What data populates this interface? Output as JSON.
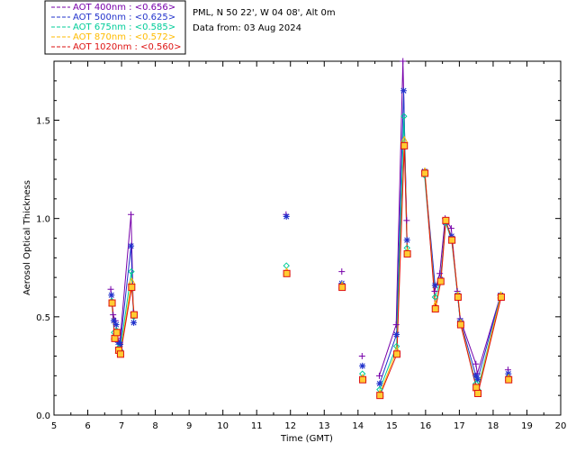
{
  "chart_data": {
    "type": "scatter",
    "title": "",
    "xlabel": "Time (GMT)",
    "ylabel": "Aerosol Optical Thickness",
    "xlim": [
      5,
      20
    ],
    "ylim": [
      0,
      1.8
    ],
    "xticks": [
      5,
      6,
      7,
      8,
      9,
      10,
      11,
      12,
      13,
      14,
      15,
      16,
      17,
      18,
      19,
      20
    ],
    "yticks": [
      0.0,
      0.5,
      1.0,
      1.5
    ],
    "ytick_labels": [
      "0.0",
      "0.5",
      "1.0",
      "1.5"
    ],
    "grid": false,
    "legend_position": "top-left-outside",
    "info": {
      "station": "PML, N 50 22', W 04 08', Alt 0m",
      "date_line": "Data from: 03 Aug 2024"
    },
    "series": [
      {
        "name": "AOT  400nm",
        "label": "AOT  400nm : <0.656>",
        "color": "#7700aa",
        "marker": "plus",
        "points": [
          [
            6.68,
            0.64
          ],
          [
            6.75,
            0.51
          ],
          [
            6.82,
            0.48
          ],
          [
            6.88,
            0.39
          ],
          [
            6.95,
            0.37
          ],
          [
            7.28,
            1.02
          ],
          [
            7.35,
            0.52
          ],
          [
            11.87,
            1.02
          ],
          [
            13.52,
            0.73
          ],
          [
            14.12,
            0.3
          ],
          [
            14.63,
            0.2
          ],
          [
            15.13,
            0.46
          ],
          [
            15.33,
            1.8
          ],
          [
            15.44,
            0.99
          ],
          [
            15.97,
            1.24
          ],
          [
            16.27,
            0.63
          ],
          [
            16.42,
            0.72
          ],
          [
            16.58,
            1.0
          ],
          [
            16.76,
            0.95
          ],
          [
            16.94,
            0.63
          ],
          [
            17.02,
            0.49
          ],
          [
            17.49,
            0.26
          ],
          [
            17.53,
            0.21
          ],
          [
            18.22,
            0.61
          ],
          [
            18.44,
            0.23
          ]
        ]
      },
      {
        "name": "AOT  500nm",
        "label": "AOT  500nm : <0.625>",
        "color": "#2233cc",
        "marker": "star",
        "points": [
          [
            6.7,
            0.61
          ],
          [
            6.77,
            0.48
          ],
          [
            6.84,
            0.46
          ],
          [
            6.9,
            0.37
          ],
          [
            6.96,
            0.36
          ],
          [
            7.28,
            0.86
          ],
          [
            7.36,
            0.47
          ],
          [
            11.88,
            1.01
          ],
          [
            13.52,
            0.67
          ],
          [
            14.13,
            0.25
          ],
          [
            14.64,
            0.16
          ],
          [
            15.14,
            0.41
          ],
          [
            15.35,
            1.65
          ],
          [
            15.45,
            0.89
          ],
          [
            15.97,
            1.24
          ],
          [
            16.28,
            0.66
          ],
          [
            16.44,
            0.69
          ],
          [
            16.59,
            0.98
          ],
          [
            16.77,
            0.91
          ],
          [
            16.95,
            0.61
          ],
          [
            17.03,
            0.48
          ],
          [
            17.49,
            0.2
          ],
          [
            17.54,
            0.18
          ],
          [
            18.22,
            0.61
          ],
          [
            18.45,
            0.21
          ]
        ]
      },
      {
        "name": "AOT  675nm",
        "label": "AOT  675nm : <0.585>",
        "color": "#00cc99",
        "marker": "diamond",
        "points": [
          [
            6.71,
            0.58
          ],
          [
            6.78,
            0.42
          ],
          [
            6.85,
            0.43
          ],
          [
            6.9,
            0.34
          ],
          [
            6.96,
            0.33
          ],
          [
            7.29,
            0.73
          ],
          [
            7.36,
            0.5
          ],
          [
            11.88,
            0.76
          ],
          [
            13.53,
            0.66
          ],
          [
            14.13,
            0.21
          ],
          [
            14.64,
            0.13
          ],
          [
            15.14,
            0.35
          ],
          [
            15.36,
            1.52
          ],
          [
            15.45,
            0.85
          ],
          [
            15.97,
            1.22
          ],
          [
            16.28,
            0.6
          ],
          [
            16.44,
            0.68
          ],
          [
            16.59,
            0.98
          ],
          [
            16.77,
            0.89
          ],
          [
            16.95,
            0.61
          ],
          [
            17.03,
            0.47
          ],
          [
            17.49,
            0.16
          ],
          [
            17.54,
            0.13
          ],
          [
            18.23,
            0.61
          ],
          [
            18.45,
            0.19
          ]
        ]
      },
      {
        "name": "AOT  870nm",
        "label": "AOT  870nm : <0.572>",
        "color": "#ffbb00",
        "marker": "triangle",
        "points": [
          [
            6.72,
            0.57
          ],
          [
            6.79,
            0.4
          ],
          [
            6.86,
            0.42
          ],
          [
            6.91,
            0.33
          ],
          [
            6.97,
            0.32
          ],
          [
            7.3,
            0.68
          ],
          [
            7.37,
            0.51
          ],
          [
            11.89,
            0.73
          ],
          [
            13.53,
            0.66
          ],
          [
            14.14,
            0.19
          ],
          [
            14.65,
            0.11
          ],
          [
            15.15,
            0.33
          ],
          [
            15.37,
            1.4
          ],
          [
            15.46,
            0.83
          ],
          [
            15.98,
            1.24
          ],
          [
            16.29,
            0.56
          ],
          [
            16.45,
            0.68
          ],
          [
            16.6,
            0.99
          ],
          [
            16.78,
            0.89
          ],
          [
            16.96,
            0.61
          ],
          [
            17.04,
            0.47
          ],
          [
            17.5,
            0.14
          ],
          [
            17.55,
            0.12
          ],
          [
            18.23,
            0.61
          ],
          [
            18.46,
            0.19
          ]
        ]
      },
      {
        "name": "AOT 1020nm",
        "label": "AOT 1020nm : <0.560>",
        "color": "#dd1111",
        "marker": "square",
        "points": [
          [
            6.72,
            0.57
          ],
          [
            6.8,
            0.39
          ],
          [
            6.86,
            0.42
          ],
          [
            6.92,
            0.33
          ],
          [
            6.97,
            0.31
          ],
          [
            7.3,
            0.65
          ],
          [
            7.37,
            0.51
          ],
          [
            11.89,
            0.72
          ],
          [
            13.53,
            0.65
          ],
          [
            14.14,
            0.18
          ],
          [
            14.65,
            0.1
          ],
          [
            15.15,
            0.31
          ],
          [
            15.37,
            1.37
          ],
          [
            15.46,
            0.82
          ],
          [
            15.98,
            1.23
          ],
          [
            16.29,
            0.54
          ],
          [
            16.45,
            0.68
          ],
          [
            16.6,
            0.99
          ],
          [
            16.78,
            0.89
          ],
          [
            16.96,
            0.6
          ],
          [
            17.04,
            0.46
          ],
          [
            17.5,
            0.14
          ],
          [
            17.55,
            0.11
          ],
          [
            18.24,
            0.6
          ],
          [
            18.46,
            0.18
          ]
        ]
      }
    ],
    "connected_segments": [
      [
        0,
        6
      ],
      [
        10,
        13
      ],
      [
        14,
        16
      ],
      [
        16,
        20
      ],
      [
        20,
        22
      ],
      [
        22,
        23
      ]
    ]
  }
}
